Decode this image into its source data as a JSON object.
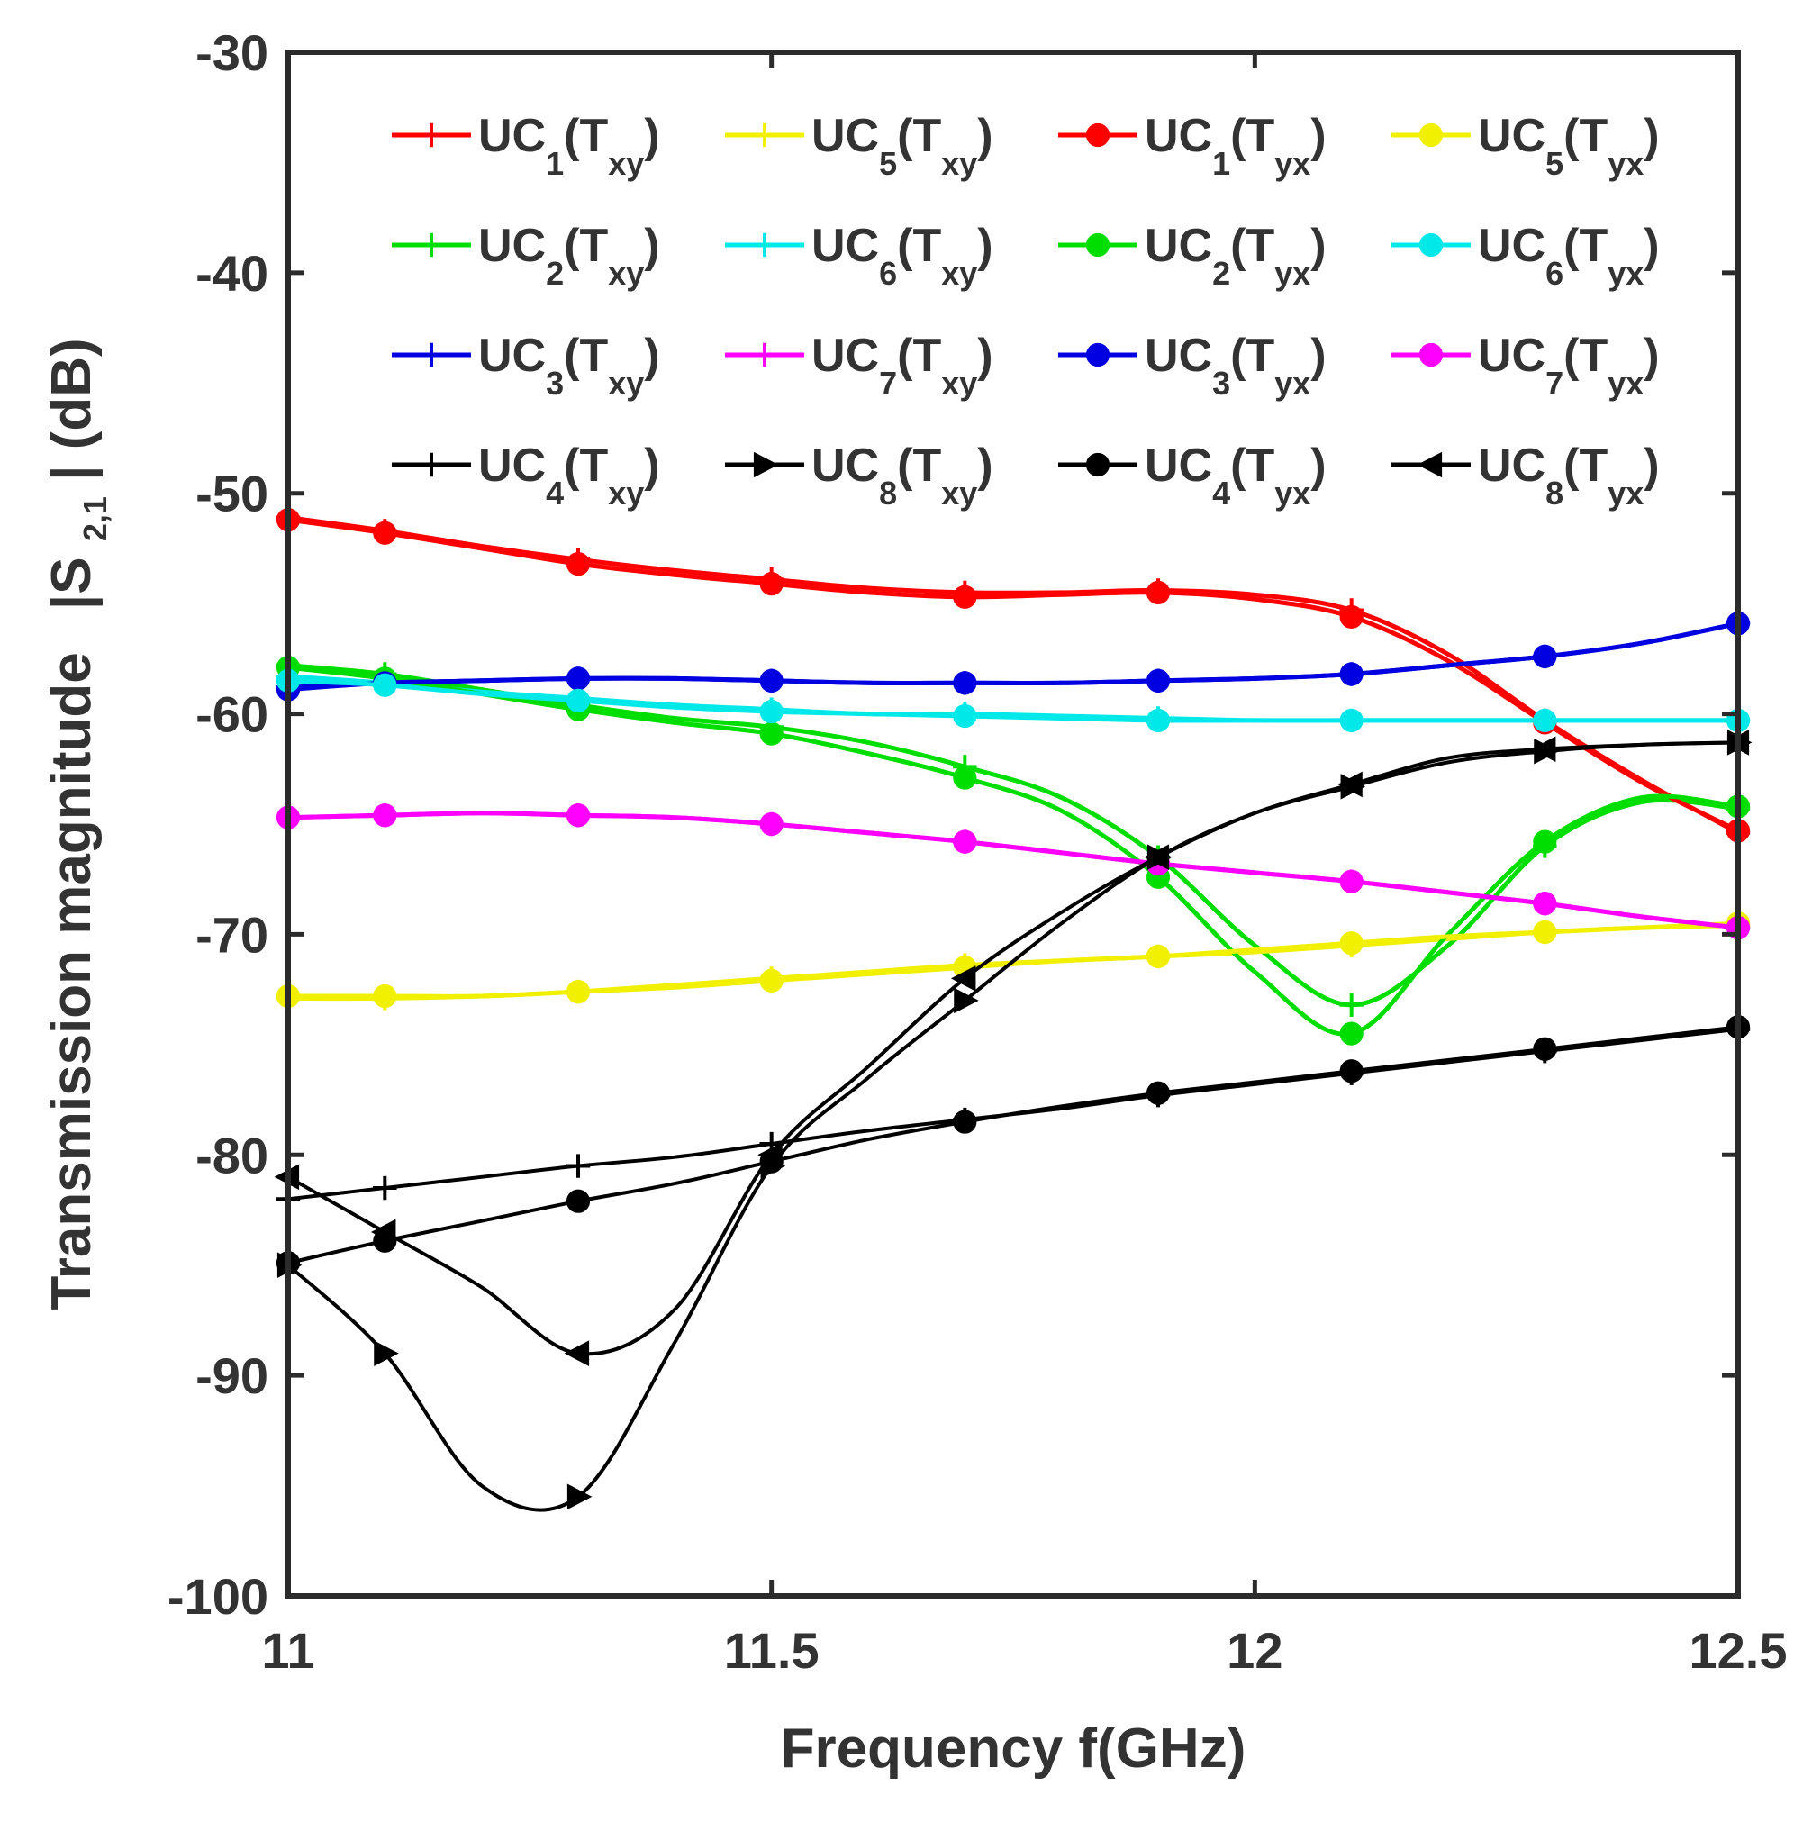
{
  "chart_data": {
    "type": "line",
    "title": "",
    "xlabel": "Frequency f(GHz)",
    "ylabel": "Transmission magnitude",
    "ylabel_symbol": {
      "pre": "|S",
      "sub": "2,1",
      "post": "| (dB)"
    },
    "xlim": [
      11,
      12.5
    ],
    "ylim": [
      -100,
      -30
    ],
    "xticks": [
      11,
      11.5,
      12,
      12.5
    ],
    "xtick_labels": [
      "11",
      "11.5",
      "12",
      "12.5"
    ],
    "yticks": [
      -100,
      -90,
      -80,
      -70,
      -60,
      -50,
      -40,
      -30
    ],
    "ytick_labels": [
      "-100",
      "-90",
      "-80",
      "-70",
      "-60",
      "-50",
      "-40",
      "-30"
    ],
    "legend_position": "top-right",
    "legend_columns": 4,
    "x": [
      11.0,
      11.1,
      11.2,
      11.3,
      11.4,
      11.5,
      11.6,
      11.7,
      11.8,
      11.9,
      12.0,
      12.1,
      12.2,
      12.3,
      12.4,
      12.5
    ],
    "series": [
      {
        "name": "UC1(Txy)",
        "label": {
          "base": "UC",
          "sub": "1",
          "T": "T",
          "tsub": "xy"
        },
        "color": "#ff0000",
        "marker": "plus",
        "values": [
          -51.1,
          -51.7,
          -52.4,
          -53.0,
          -53.5,
          -53.9,
          -54.3,
          -54.5,
          -54.5,
          -54.4,
          -54.6,
          -55.3,
          -57.3,
          -60.3,
          -63.0,
          -65.4
        ]
      },
      {
        "name": "UC2(Txy)",
        "label": {
          "base": "UC",
          "sub": "2",
          "T": "T",
          "tsub": "xy"
        },
        "color": "#00dd00",
        "marker": "plus",
        "values": [
          -57.8,
          -58.2,
          -58.9,
          -59.6,
          -60.2,
          -60.6,
          -61.3,
          -62.4,
          -63.8,
          -66.5,
          -70.5,
          -73.2,
          -70.5,
          -66.0,
          -64.0,
          -64.3
        ]
      },
      {
        "name": "UC3(Txy)",
        "label": {
          "base": "UC",
          "sub": "3",
          "T": "T",
          "tsub": "xy"
        },
        "color": "#0000e0",
        "marker": "plus",
        "values": [
          -58.8,
          -58.6,
          -58.5,
          -58.4,
          -58.4,
          -58.5,
          -58.6,
          -58.6,
          -58.6,
          -58.5,
          -58.4,
          -58.2,
          -57.8,
          -57.4,
          -56.8,
          -55.9
        ]
      },
      {
        "name": "UC4(Txy)",
        "label": {
          "base": "UC",
          "sub": "4",
          "T": "T",
          "tsub": "xy"
        },
        "color": "#000000",
        "marker": "plus",
        "values": [
          -82.0,
          -81.5,
          -81.0,
          -80.5,
          -80.1,
          -79.5,
          -78.9,
          -78.4,
          -77.9,
          -77.3,
          -76.8,
          -76.3,
          -75.8,
          -75.3,
          -74.8,
          -74.3
        ]
      },
      {
        "name": "UC5(Txy)",
        "label": {
          "base": "UC",
          "sub": "5",
          "T": "T",
          "tsub": "xy"
        },
        "color": "#f0f000",
        "marker": "plus",
        "values": [
          -72.9,
          -72.9,
          -72.8,
          -72.6,
          -72.3,
          -72.0,
          -71.7,
          -71.4,
          -71.2,
          -71.0,
          -70.8,
          -70.5,
          -70.2,
          -69.9,
          -69.7,
          -69.6
        ]
      },
      {
        "name": "UC6(Txy)",
        "label": {
          "base": "UC",
          "sub": "6",
          "T": "T",
          "tsub": "xy"
        },
        "color": "#00e8e8",
        "marker": "plus",
        "values": [
          -58.3,
          -58.6,
          -59.0,
          -59.3,
          -59.6,
          -59.8,
          -60.0,
          -60.0,
          -60.1,
          -60.2,
          -60.3,
          -60.3,
          -60.3,
          -60.3,
          -60.3,
          -60.3
        ]
      },
      {
        "name": "UC7(Txy)",
        "label": {
          "base": "UC",
          "sub": "7",
          "T": "T",
          "tsub": "xy"
        },
        "color": "#ff00ff",
        "marker": "plus",
        "values": [
          -64.7,
          -64.6,
          -64.5,
          -64.6,
          -64.7,
          -65.0,
          -65.4,
          -65.8,
          -66.3,
          -66.8,
          -67.2,
          -67.6,
          -68.1,
          -68.6,
          -69.2,
          -69.7
        ]
      },
      {
        "name": "UC8(Txy)",
        "label": {
          "base": "UC",
          "sub": "8",
          "T": "T",
          "tsub": "xy"
        },
        "color": "#000000",
        "marker": "triangle-right",
        "values": [
          -85.0,
          -89.0,
          -95.0,
          -95.5,
          -88.5,
          -80.5,
          -76.5,
          -73.0,
          -69.5,
          -66.5,
          -64.5,
          -63.3,
          -62.2,
          -61.7,
          -61.4,
          -61.3
        ]
      },
      {
        "name": "UC1(Tyx)",
        "label": {
          "base": "UC",
          "sub": "1",
          "T": "T",
          "tsub": "yx"
        },
        "color": "#ff0000",
        "marker": "circle",
        "values": [
          -51.2,
          -51.8,
          -52.5,
          -53.2,
          -53.7,
          -54.1,
          -54.5,
          -54.7,
          -54.6,
          -54.5,
          -54.8,
          -55.6,
          -57.6,
          -60.4,
          -63.1,
          -65.3
        ]
      },
      {
        "name": "UC2(Tyx)",
        "label": {
          "base": "UC",
          "sub": "2",
          "T": "T",
          "tsub": "yx"
        },
        "color": "#00dd00",
        "marker": "circle",
        "values": [
          -57.9,
          -58.4,
          -59.1,
          -59.8,
          -60.4,
          -60.9,
          -61.8,
          -62.9,
          -64.4,
          -67.4,
          -71.7,
          -74.5,
          -70.0,
          -65.8,
          -63.8,
          -64.2
        ]
      },
      {
        "name": "UC3(Tyx)",
        "label": {
          "base": "UC",
          "sub": "3",
          "T": "T",
          "tsub": "yx"
        },
        "color": "#0000e0",
        "marker": "circle",
        "values": [
          -58.9,
          -58.6,
          -58.5,
          -58.4,
          -58.4,
          -58.5,
          -58.6,
          -58.6,
          -58.6,
          -58.5,
          -58.4,
          -58.2,
          -57.8,
          -57.4,
          -56.8,
          -55.9
        ]
      },
      {
        "name": "UC4(Tyx)",
        "label": {
          "base": "UC",
          "sub": "4",
          "T": "T",
          "tsub": "yx"
        },
        "color": "#000000",
        "marker": "circle",
        "values": [
          -84.9,
          -83.9,
          -83.0,
          -82.1,
          -81.3,
          -80.3,
          -79.3,
          -78.5,
          -77.8,
          -77.2,
          -76.7,
          -76.2,
          -75.7,
          -75.2,
          -74.7,
          -74.2
        ]
      },
      {
        "name": "UC5(Tyx)",
        "label": {
          "base": "UC",
          "sub": "5",
          "T": "T",
          "tsub": "yx"
        },
        "color": "#f0f000",
        "marker": "circle",
        "values": [
          -72.8,
          -72.8,
          -72.8,
          -72.6,
          -72.4,
          -72.1,
          -71.8,
          -71.5,
          -71.2,
          -71.0,
          -70.7,
          -70.4,
          -70.1,
          -69.9,
          -69.7,
          -69.5
        ]
      },
      {
        "name": "UC6(Tyx)",
        "label": {
          "base": "UC",
          "sub": "6",
          "T": "T",
          "tsub": "yx"
        },
        "color": "#00e8e8",
        "marker": "circle",
        "values": [
          -58.5,
          -58.7,
          -59.1,
          -59.4,
          -59.7,
          -59.9,
          -60.0,
          -60.1,
          -60.2,
          -60.3,
          -60.3,
          -60.3,
          -60.3,
          -60.3,
          -60.3,
          -60.3
        ]
      },
      {
        "name": "UC7(Tyx)",
        "label": {
          "base": "UC",
          "sub": "7",
          "T": "T",
          "tsub": "yx"
        },
        "color": "#ff00ff",
        "marker": "circle",
        "values": [
          -64.7,
          -64.6,
          -64.5,
          -64.6,
          -64.7,
          -65.0,
          -65.4,
          -65.8,
          -66.3,
          -66.8,
          -67.2,
          -67.6,
          -68.1,
          -68.6,
          -69.2,
          -69.7
        ]
      },
      {
        "name": "UC8(Tyx)",
        "label": {
          "base": "UC",
          "sub": "8",
          "T": "T",
          "tsub": "yx"
        },
        "color": "#000000",
        "marker": "triangle-left",
        "values": [
          -81.0,
          -83.5,
          -86.0,
          -89.0,
          -87.0,
          -80.0,
          -76.0,
          -72.0,
          -69.0,
          -66.5,
          -64.5,
          -63.2,
          -62.0,
          -61.6,
          -61.4,
          -61.3
        ]
      }
    ]
  }
}
